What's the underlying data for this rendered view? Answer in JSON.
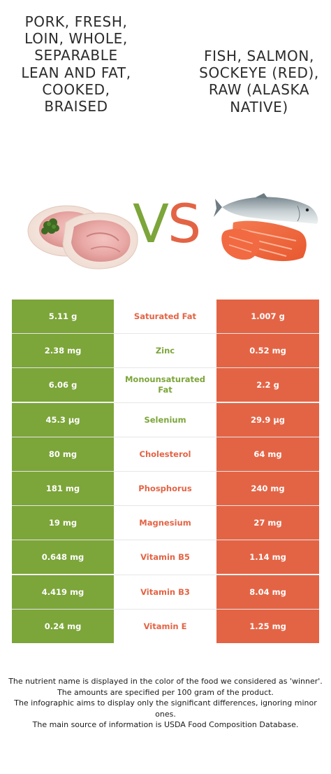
{
  "food_left": {
    "name": "Pork, fresh, loin, whole, separable lean and fat, cooked, braised",
    "image_icon": "pork-loin-image",
    "color": "#7ca53a"
  },
  "food_right": {
    "name": "Fish, salmon, sockeye (red), raw (Alaska Native)",
    "image_icon": "salmon-image",
    "color": "#e36445"
  },
  "vs": {
    "v": "V",
    "s": "S"
  },
  "rows": [
    {
      "nutrient": "Saturated Fat",
      "left": "5.11 g",
      "right": "1.007 g",
      "winner": "right"
    },
    {
      "nutrient": "Zinc",
      "left": "2.38 mg",
      "right": "0.52 mg",
      "winner": "left"
    },
    {
      "nutrient": "Monounsaturated Fat",
      "left": "6.06 g",
      "right": "2.2 g",
      "winner": "left"
    },
    {
      "nutrient": "Selenium",
      "left": "45.3 µg",
      "right": "29.9 µg",
      "winner": "left"
    },
    {
      "nutrient": "Cholesterol",
      "left": "80 mg",
      "right": "64 mg",
      "winner": "right"
    },
    {
      "nutrient": "Phosphorus",
      "left": "181 mg",
      "right": "240 mg",
      "winner": "right"
    },
    {
      "nutrient": "Magnesium",
      "left": "19 mg",
      "right": "27 mg",
      "winner": "right"
    },
    {
      "nutrient": "Vitamin B5",
      "left": "0.648 mg",
      "right": "1.14 mg",
      "winner": "right"
    },
    {
      "nutrient": "Vitamin B3",
      "left": "4.419 mg",
      "right": "8.04 mg",
      "winner": "right"
    },
    {
      "nutrient": "Vitamin E",
      "left": "0.24 mg",
      "right": "1.25 mg",
      "winner": "right"
    }
  ],
  "footnotes": [
    "The nutrient name is displayed in the color of the food we considered as 'winner'.",
    "The amounts are specified per 100 gram of the product.",
    "The infographic aims to display only the significant differences, ignoring minor ones.",
    "The main source of information is USDA Food Composition Database."
  ]
}
